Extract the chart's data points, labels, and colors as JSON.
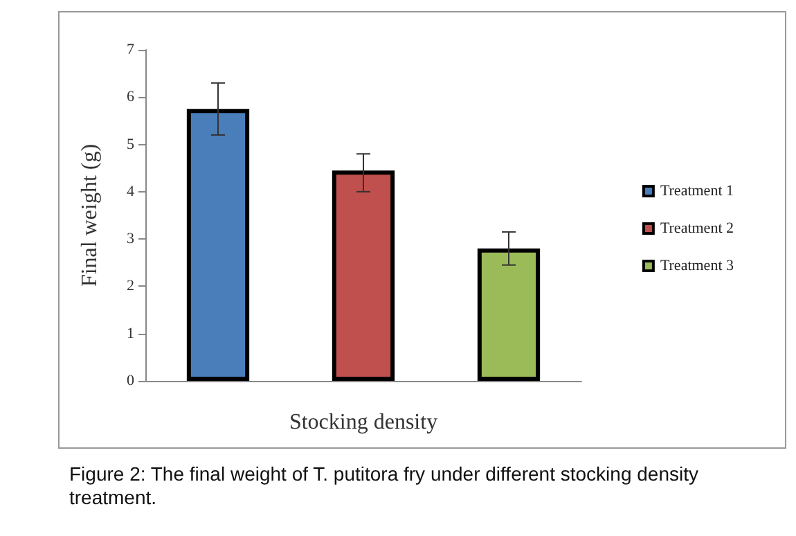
{
  "chart_data": {
    "type": "bar",
    "xlabel": "Stocking density",
    "ylabel": "Final weight (g)",
    "categories": [
      null,
      null,
      null
    ],
    "series": [
      {
        "name": "Treatment 1",
        "color": "#4a7ebb",
        "values": [
          5.75,
          null,
          null
        ],
        "errors": [
          [
            5.2,
            6.3
          ],
          null,
          null
        ]
      },
      {
        "name": "Treatment 2",
        "color": "#c0504d",
        "values": [
          null,
          4.45,
          null
        ],
        "errors": [
          null,
          [
            4.0,
            4.8
          ],
          null
        ]
      },
      {
        "name": "Treatment 3",
        "color": "#9bbb59",
        "values": [
          null,
          null,
          2.8
        ],
        "errors": [
          null,
          null,
          [
            2.45,
            3.15
          ]
        ]
      }
    ],
    "ylim": [
      0,
      7
    ],
    "yticks": [
      0,
      1,
      2,
      3,
      4,
      5,
      6,
      7
    ],
    "grid": false,
    "legend": "right",
    "annotations": [
      "Figure 2: The final weight of T. putitora fry under different stocking density treatment."
    ]
  }
}
